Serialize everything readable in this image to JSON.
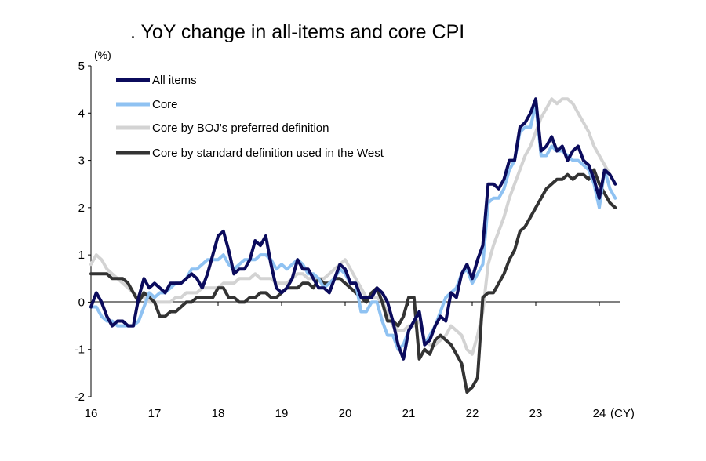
{
  "chart_data": {
    "type": "line",
    "title": ". YoY change in all-items and core CPI",
    "y_unit": "(%)",
    "x_unit": "(CY)",
    "ylim": [
      -2,
      5
    ],
    "y_ticks": [
      "5",
      "4",
      "3",
      "2",
      "1",
      "0",
      "-1",
      "-2"
    ],
    "x_ticks": [
      "16",
      "17",
      "18",
      "19",
      "20",
      "21",
      "22",
      "23",
      "24"
    ],
    "x_start": "2016-01",
    "legend_position": "top-left",
    "grid": false,
    "series": [
      {
        "name": "All items",
        "color": "#0b0b5c",
        "values": [
          -0.1,
          0.2,
          0.0,
          -0.3,
          -0.5,
          -0.4,
          -0.4,
          -0.5,
          -0.5,
          0.1,
          0.5,
          0.3,
          0.4,
          0.3,
          0.2,
          0.4,
          0.4,
          0.4,
          0.5,
          0.6,
          0.5,
          0.3,
          0.6,
          1.0,
          1.4,
          1.5,
          1.1,
          0.6,
          0.7,
          0.7,
          0.9,
          1.3,
          1.2,
          1.4,
          0.8,
          0.3,
          0.2,
          0.3,
          0.5,
          0.9,
          0.7,
          0.7,
          0.5,
          0.3,
          0.3,
          0.2,
          0.5,
          0.8,
          0.7,
          0.4,
          0.4,
          0.1,
          0.1,
          0.1,
          0.3,
          0.2,
          0.0,
          -0.4,
          -0.9,
          -1.2,
          -0.6,
          -0.4,
          -0.2,
          -0.9,
          -0.8,
          -0.5,
          -0.3,
          -0.4,
          0.2,
          0.1,
          0.6,
          0.8,
          0.5,
          0.9,
          1.2,
          2.5,
          2.5,
          2.4,
          2.6,
          3.0,
          3.0,
          3.7,
          3.8,
          4.0,
          4.3,
          3.2,
          3.3,
          3.5,
          3.2,
          3.3,
          3.0,
          3.2,
          3.3,
          3.0,
          2.9,
          2.6,
          2.2,
          2.8,
          2.7,
          2.5
        ]
      },
      {
        "name": "Core",
        "color": "#8fc2f2",
        "values": [
          -0.1,
          -0.1,
          -0.3,
          -0.4,
          -0.4,
          -0.5,
          -0.5,
          -0.5,
          -0.5,
          -0.4,
          -0.1,
          0.2,
          0.1,
          0.2,
          0.2,
          0.3,
          0.4,
          0.4,
          0.5,
          0.7,
          0.7,
          0.8,
          0.9,
          0.9,
          0.9,
          1.0,
          0.8,
          0.7,
          0.8,
          0.9,
          0.9,
          0.9,
          1.0,
          1.0,
          0.9,
          0.7,
          0.8,
          0.7,
          0.8,
          0.9,
          0.8,
          0.6,
          0.6,
          0.5,
          0.3,
          0.4,
          0.5,
          0.7,
          0.6,
          0.4,
          0.4,
          -0.2,
          -0.2,
          0.0,
          0.0,
          -0.4,
          -0.7,
          -0.7,
          -1.0,
          -0.9,
          -0.6,
          -0.4,
          -0.2,
          -0.9,
          -0.7,
          -0.5,
          -0.2,
          0.1,
          0.2,
          0.3,
          0.6,
          0.7,
          0.4,
          0.6,
          0.8,
          2.1,
          2.2,
          2.2,
          2.4,
          2.8,
          3.0,
          3.6,
          3.7,
          3.7,
          4.2,
          3.1,
          3.1,
          3.3,
          3.2,
          3.2,
          3.1,
          3.0,
          3.0,
          2.9,
          2.8,
          2.5,
          2.0,
          2.8,
          2.4,
          2.2
        ]
      },
      {
        "name": "Core by BOJ's preferred definition",
        "color": "#d3d3d3",
        "values": [
          0.8,
          1.0,
          0.9,
          0.7,
          0.6,
          0.5,
          0.4,
          0.3,
          0.2,
          0.1,
          0.1,
          0.0,
          0.0,
          0.0,
          0.0,
          0.0,
          0.1,
          0.1,
          0.2,
          0.2,
          0.2,
          0.3,
          0.3,
          0.3,
          0.3,
          0.4,
          0.4,
          0.4,
          0.5,
          0.5,
          0.5,
          0.6,
          0.5,
          0.5,
          0.5,
          0.4,
          0.4,
          0.4,
          0.5,
          0.6,
          0.6,
          0.5,
          0.5,
          0.5,
          0.5,
          0.6,
          0.7,
          0.8,
          0.9,
          0.7,
          0.5,
          0.3,
          0.1,
          0.1,
          0.1,
          0.0,
          -0.2,
          -0.5,
          -0.6,
          -0.6,
          -0.5,
          -0.5,
          -0.4,
          -0.8,
          -0.9,
          -0.9,
          -0.8,
          -0.7,
          -0.5,
          -0.6,
          -0.7,
          -1.0,
          -1.1,
          -0.7,
          -0.2,
          0.8,
          1.2,
          1.5,
          1.8,
          2.2,
          2.5,
          2.8,
          3.1,
          3.3,
          3.6,
          3.9,
          4.1,
          4.3,
          4.2,
          4.3,
          4.3,
          4.2,
          4.0,
          3.8,
          3.6,
          3.3,
          3.1,
          2.9,
          2.7,
          2.5
        ]
      },
      {
        "name": "Core by standard definition used in the West",
        "color": "#333333",
        "values": [
          0.6,
          0.6,
          0.6,
          0.6,
          0.5,
          0.5,
          0.5,
          0.4,
          0.2,
          0.0,
          0.2,
          0.1,
          0.0,
          -0.3,
          -0.3,
          -0.2,
          -0.2,
          -0.1,
          0.0,
          0.0,
          0.1,
          0.1,
          0.1,
          0.1,
          0.3,
          0.3,
          0.1,
          0.1,
          0.0,
          0.0,
          0.1,
          0.1,
          0.2,
          0.2,
          0.1,
          0.1,
          0.2,
          0.3,
          0.3,
          0.3,
          0.4,
          0.4,
          0.3,
          0.5,
          0.4,
          0.4,
          0.5,
          0.5,
          0.4,
          0.3,
          0.2,
          0.1,
          0.0,
          0.2,
          0.3,
          0.0,
          -0.4,
          -0.4,
          -0.5,
          -0.3,
          0.1,
          0.1,
          -1.2,
          -1.0,
          -1.1,
          -0.8,
          -0.7,
          -0.8,
          -0.9,
          -1.1,
          -1.3,
          -1.9,
          -1.8,
          -1.6,
          0.1,
          0.2,
          0.2,
          0.4,
          0.6,
          0.9,
          1.1,
          1.5,
          1.6,
          1.8,
          2.0,
          2.2,
          2.4,
          2.5,
          2.6,
          2.6,
          2.7,
          2.6,
          2.7,
          2.7,
          2.6,
          2.8,
          2.5,
          2.3,
          2.1,
          2.0
        ]
      }
    ]
  }
}
